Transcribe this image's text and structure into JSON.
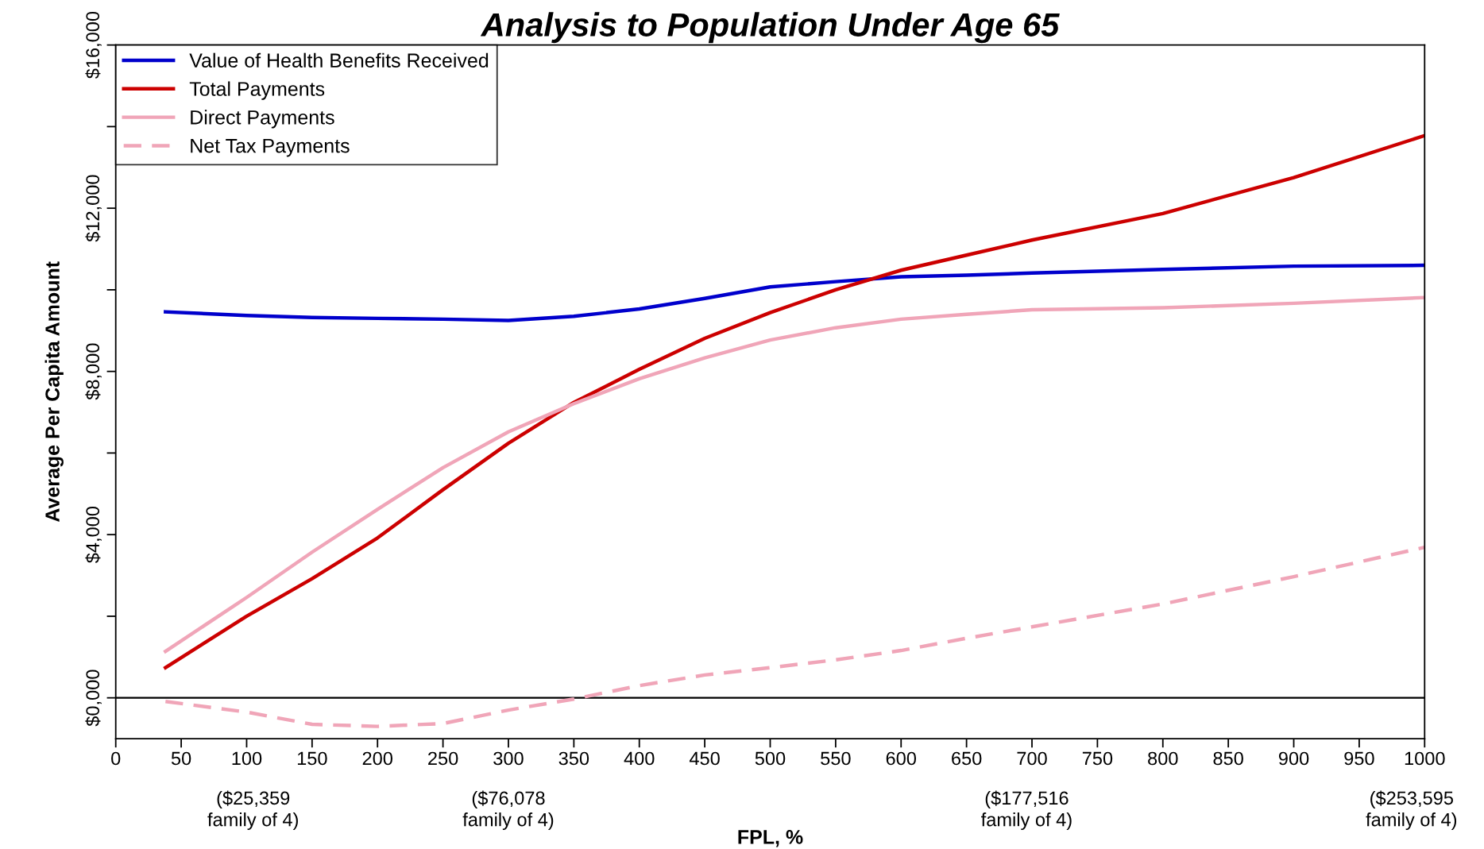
{
  "chart_data": {
    "type": "line",
    "title": "Analysis to Population Under Age 65",
    "xlabel": "FPL, %",
    "ylabel": "Average Per Capita Amount",
    "x": [
      38,
      100,
      150,
      200,
      250,
      300,
      350,
      400,
      450,
      500,
      550,
      600,
      650,
      700,
      800,
      900,
      1000
    ],
    "series": [
      {
        "name": "Value of Health Benefits Received",
        "color": "#0000cc",
        "line_style": "solid",
        "values": [
          9460,
          9370,
          9320,
          9300,
          9280,
          9250,
          9350,
          9530,
          9790,
          10070,
          10200,
          10320,
          10360,
          10410,
          10500,
          10580,
          10600
        ]
      },
      {
        "name": "Total Payments",
        "color": "#cc0000",
        "line_style": "solid",
        "values": [
          740,
          2000,
          2920,
          3920,
          5100,
          6240,
          7240,
          8050,
          8810,
          9440,
          10000,
          10480,
          10850,
          11220,
          11870,
          12750,
          13780
        ]
      },
      {
        "name": "Direct Payments",
        "color": "#f0a5b8",
        "line_style": "solid",
        "values": [
          1140,
          2460,
          3570,
          4620,
          5640,
          6520,
          7210,
          7820,
          8330,
          8770,
          9070,
          9280,
          9400,
          9510,
          9560,
          9670,
          9810
        ]
      },
      {
        "name": "Net Tax Payments",
        "color": "#f0a5b8",
        "line_style": "dashed",
        "values": [
          -90,
          -350,
          -650,
          -700,
          -630,
          -300,
          -30,
          300,
          560,
          740,
          930,
          1160,
          1460,
          1740,
          2300,
          2970,
          3690
        ]
      }
    ],
    "xlim": [
      0,
      1000
    ],
    "xticks": [
      0,
      50,
      100,
      150,
      200,
      250,
      300,
      350,
      400,
      450,
      500,
      550,
      600,
      650,
      700,
      750,
      800,
      850,
      900,
      950,
      1000
    ],
    "ylim": [
      -1000,
      16000
    ],
    "yticks": [
      {
        "value": 0,
        "label": "$0,000"
      },
      {
        "value": 2000,
        "label": null
      },
      {
        "value": 4000,
        "label": "$4,000"
      },
      {
        "value": 6000,
        "label": null
      },
      {
        "value": 8000,
        "label": "$8,000"
      },
      {
        "value": 10000,
        "label": null
      },
      {
        "value": 12000,
        "label": "$12,000"
      },
      {
        "value": 14000,
        "label": null
      },
      {
        "value": 16000,
        "label": "$16,000"
      }
    ],
    "ref_lines": [
      {
        "axis": "y",
        "value": 0,
        "color": "#000000",
        "line_style": "solid"
      }
    ],
    "annotations": [
      "($25,359\nfamily of 4)",
      "($76,078\nfamily of 4)",
      "($177,516\nfamily of 4)",
      "($253,595\nfamily of 4)"
    ],
    "legend": "top left",
    "grid": false,
    "marker": "none"
  }
}
